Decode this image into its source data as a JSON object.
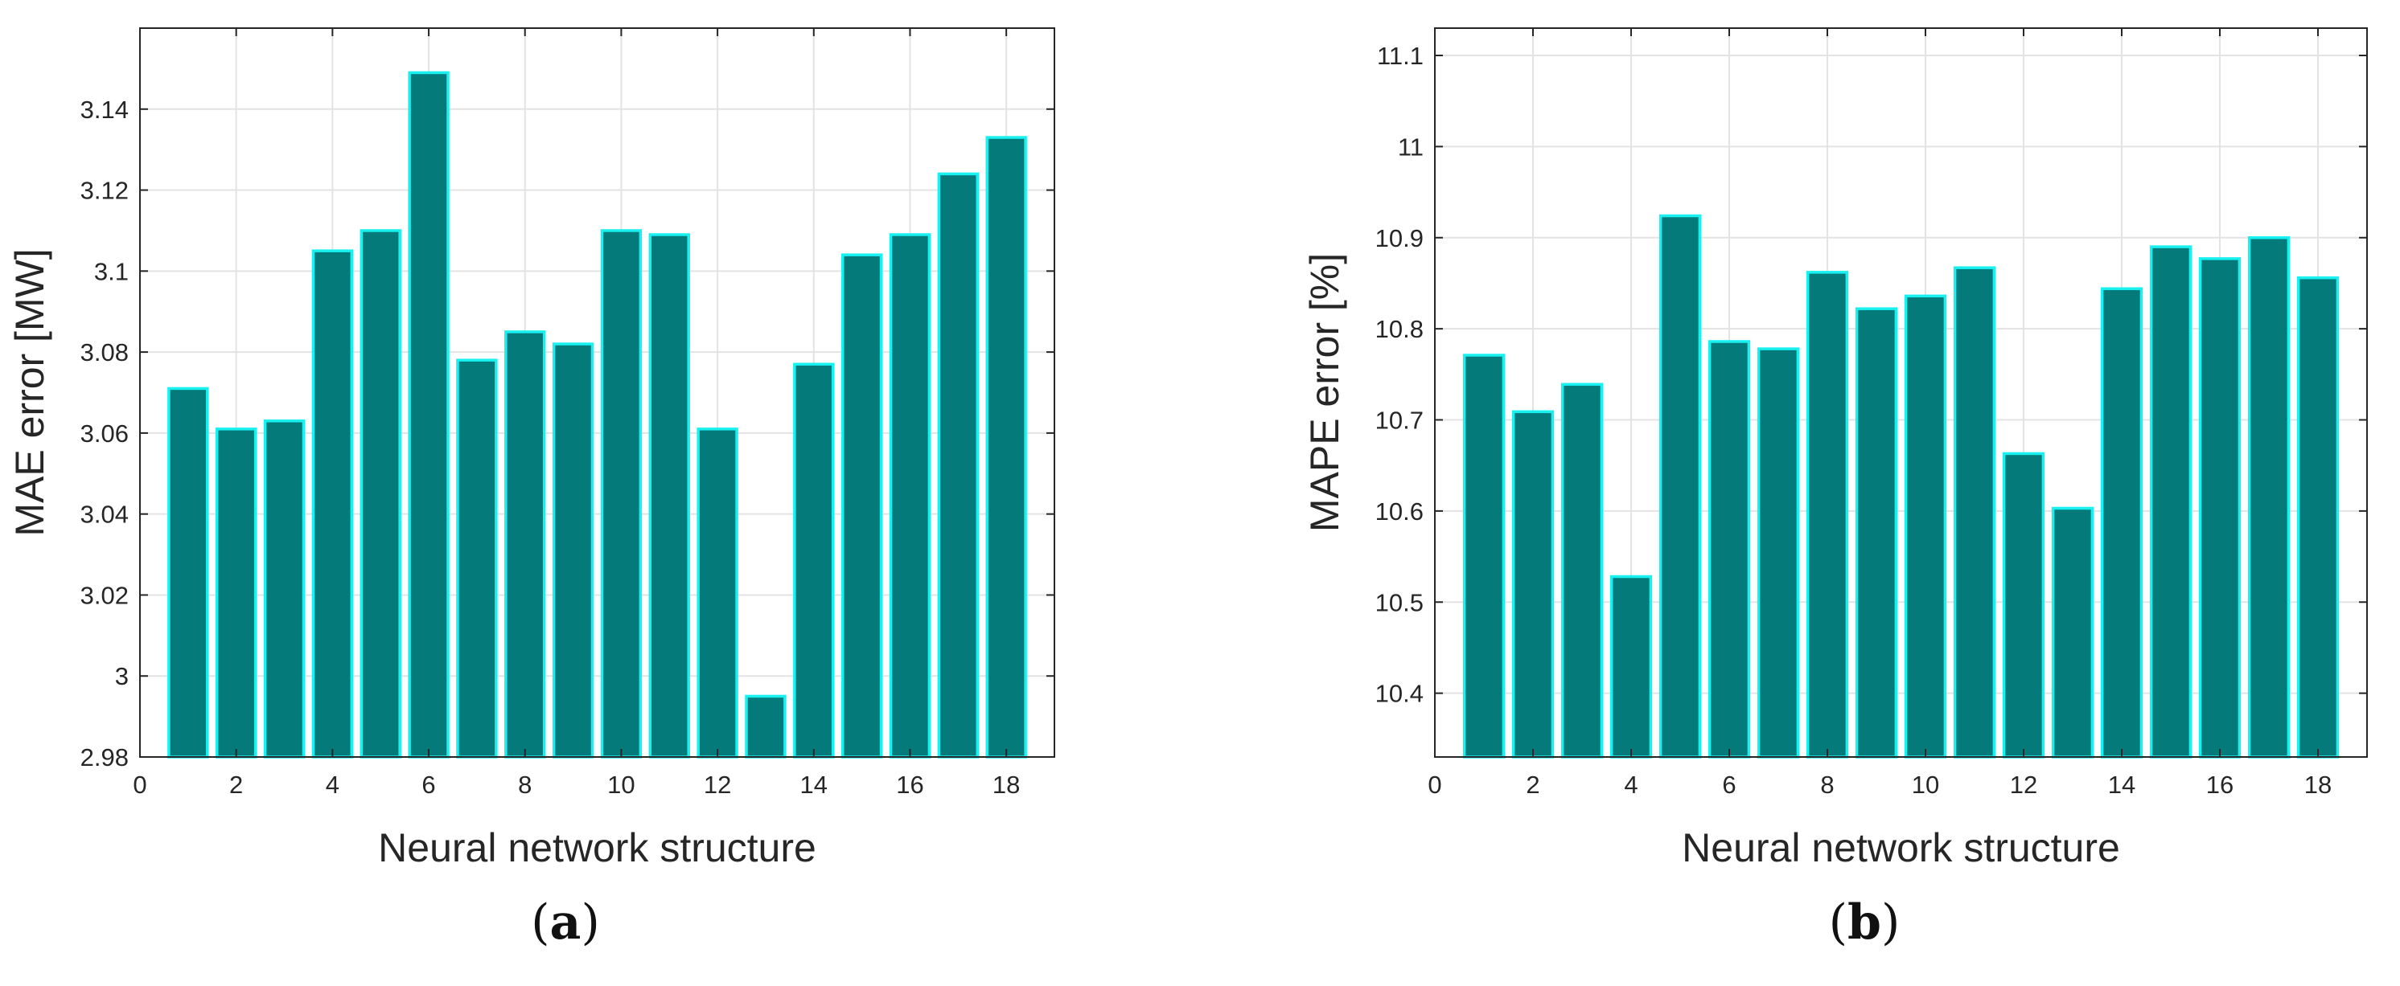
{
  "colors": {
    "bar_fill": "#047A7A",
    "bar_edge": "#19F0F0",
    "grid": "#E3E3E3",
    "axes": "#262626",
    "background": "#FFFFFF"
  },
  "panels": [
    {
      "open": "(",
      "letter": "a",
      "close": ")"
    },
    {
      "open": "(",
      "letter": "b",
      "close": ")"
    }
  ],
  "chart_data": [
    {
      "type": "bar",
      "title": "",
      "xlabel": "Neural network structure",
      "ylabel": "MAE error [MW]",
      "x": [
        1,
        2,
        3,
        4,
        5,
        6,
        7,
        8,
        9,
        10,
        11,
        12,
        13,
        14,
        15,
        16,
        17,
        18
      ],
      "values": [
        3.071,
        3.061,
        3.063,
        3.105,
        3.11,
        3.149,
        3.078,
        3.085,
        3.082,
        3.11,
        3.109,
        3.061,
        2.995,
        3.077,
        3.104,
        3.109,
        3.124,
        3.133
      ],
      "xlim": [
        0,
        19
      ],
      "ylim": [
        2.98,
        3.16
      ],
      "xticks": [
        0,
        2,
        4,
        6,
        8,
        10,
        12,
        14,
        16,
        18
      ],
      "xtick_labels": [
        "0",
        "2",
        "4",
        "6",
        "8",
        "10",
        "12",
        "14",
        "16",
        "18"
      ],
      "yticks": [
        2.98,
        3.0,
        3.02,
        3.04,
        3.06,
        3.08,
        3.1,
        3.12,
        3.14
      ],
      "ytick_labels": [
        "2.98",
        "3",
        "3.02",
        "3.04",
        "3.06",
        "3.08",
        "3.1",
        "3.12",
        "3.14"
      ],
      "grid": true
    },
    {
      "type": "bar",
      "title": "",
      "xlabel": "Neural network structure",
      "ylabel": "MAPE error [%]",
      "x": [
        1,
        2,
        3,
        4,
        5,
        6,
        7,
        8,
        9,
        10,
        11,
        12,
        13,
        14,
        15,
        16,
        17,
        18
      ],
      "values": [
        10.771,
        10.709,
        10.739,
        10.528,
        10.924,
        10.786,
        10.778,
        10.862,
        10.822,
        10.836,
        10.867,
        10.663,
        10.603,
        10.844,
        10.89,
        10.877,
        10.9,
        10.856
      ],
      "xlim": [
        0,
        19
      ],
      "ylim": [
        10.33,
        11.13
      ],
      "xticks": [
        0,
        2,
        4,
        6,
        8,
        10,
        12,
        14,
        16,
        18
      ],
      "xtick_labels": [
        "0",
        "2",
        "4",
        "6",
        "8",
        "10",
        "12",
        "14",
        "16",
        "18"
      ],
      "yticks": [
        10.4,
        10.5,
        10.6,
        10.7,
        10.8,
        10.9,
        11.0,
        11.1
      ],
      "ytick_labels": [
        "10.4",
        "10.5",
        "10.6",
        "10.7",
        "10.8",
        "10.9",
        "11",
        "11.1"
      ],
      "grid": true
    }
  ]
}
